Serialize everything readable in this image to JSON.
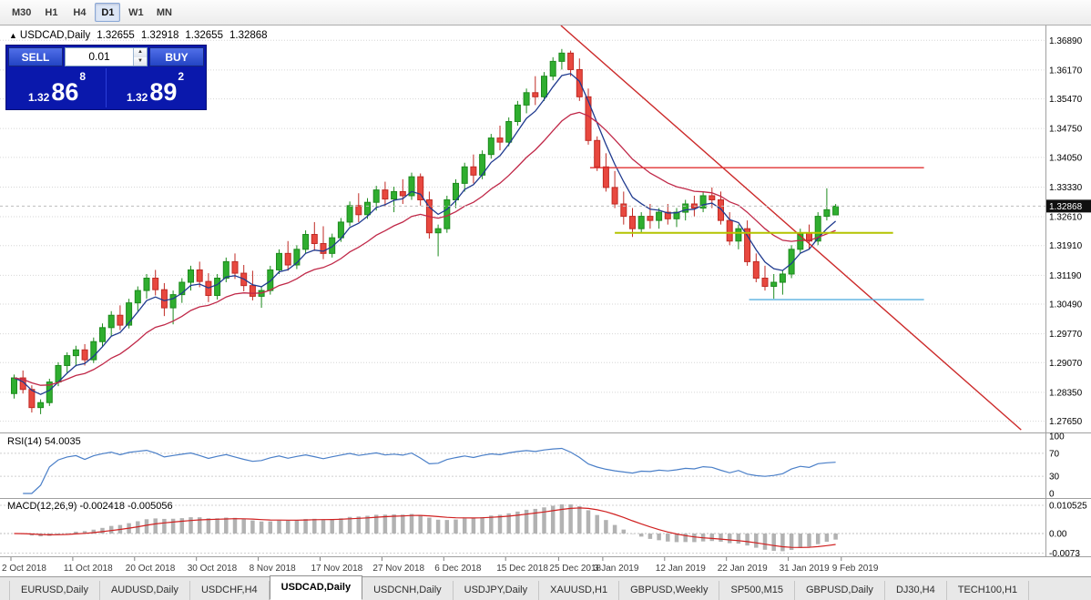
{
  "toolbar": {
    "timeframes": [
      {
        "label": "M30",
        "active": false
      },
      {
        "label": "H1",
        "active": false
      },
      {
        "label": "H4",
        "active": false
      },
      {
        "label": "D1",
        "active": true
      },
      {
        "label": "W1",
        "active": false
      },
      {
        "label": "MN",
        "active": false
      }
    ]
  },
  "trade_panel": {
    "sell_label": "SELL",
    "buy_label": "BUY",
    "lot_value": "0.01",
    "sell_price": {
      "prefix": "1.32",
      "big": "86",
      "sup": "8"
    },
    "buy_price": {
      "prefix": "1.32",
      "big": "89",
      "sup": "2"
    }
  },
  "chart": {
    "info": {
      "direction": "▲",
      "symbol": "USDCAD,Daily",
      "open": "1.32655",
      "high": "1.32918",
      "low": "1.32655",
      "close": "1.32868"
    },
    "price_axis_labels": [
      "1.36890",
      "1.36170",
      "1.35470",
      "1.34750",
      "1.34050",
      "1.33330",
      "1.32610",
      "1.31910",
      "1.31190",
      "1.30490",
      "1.29770",
      "1.29070",
      "1.28350",
      "1.27650"
    ],
    "current_price": "1.32868",
    "scale": {
      "price_top": 1.3725,
      "price_bottom": 1.2742
    },
    "colors": {
      "up": "#2fae2f",
      "up_border": "#1d8a1d",
      "down": "#e8483f",
      "down_border": "#c02a24",
      "ma_fast": "#1f3a8f",
      "ma_slow": "#c02848",
      "trend": "#cc2a2a",
      "hline_red": "#e03232",
      "hline_yellow": "#b4c400",
      "hline_blue": "#58b0e0",
      "rsi": "#4a7fc8",
      "macd_hist": "#b2b2b2",
      "macd_signal": "#d02020"
    },
    "candles": [
      [
        1.2832,
        1.2878,
        1.282,
        1.287
      ],
      [
        1.287,
        1.2888,
        1.2832,
        1.2842
      ],
      [
        1.2842,
        1.2852,
        1.2786,
        1.2798
      ],
      [
        1.2798,
        1.2818,
        1.2782,
        1.281
      ],
      [
        1.281,
        1.2868,
        1.2802,
        1.286
      ],
      [
        1.286,
        1.2908,
        1.285,
        1.29
      ],
      [
        1.29,
        1.2932,
        1.2882,
        1.2924
      ],
      [
        1.2924,
        1.2948,
        1.2898,
        1.2938
      ],
      [
        1.2938,
        1.2952,
        1.29,
        1.2914
      ],
      [
        1.2914,
        1.2968,
        1.2906,
        1.2958
      ],
      [
        1.2958,
        1.3002,
        1.2944,
        1.2992
      ],
      [
        1.2992,
        1.3032,
        1.2972,
        1.3022
      ],
      [
        1.3022,
        1.3046,
        1.2986,
        1.2998
      ],
      [
        1.2998,
        1.3062,
        1.299,
        1.3052
      ],
      [
        1.3052,
        1.3092,
        1.3032,
        1.3082
      ],
      [
        1.3082,
        1.3122,
        1.3062,
        1.3112
      ],
      [
        1.3112,
        1.3132,
        1.307,
        1.3084
      ],
      [
        1.3084,
        1.31,
        1.302,
        1.304
      ],
      [
        1.304,
        1.3082,
        1.3,
        1.3072
      ],
      [
        1.3072,
        1.3112,
        1.3052,
        1.3102
      ],
      [
        1.3102,
        1.3142,
        1.3082,
        1.3132
      ],
      [
        1.3132,
        1.3152,
        1.309,
        1.3104
      ],
      [
        1.3104,
        1.3124,
        1.3054,
        1.307
      ],
      [
        1.307,
        1.3122,
        1.306,
        1.3112
      ],
      [
        1.3112,
        1.3162,
        1.3102,
        1.3152
      ],
      [
        1.3152,
        1.3172,
        1.311,
        1.3124
      ],
      [
        1.3124,
        1.3144,
        1.308,
        1.3094
      ],
      [
        1.3094,
        1.313,
        1.3058,
        1.3068
      ],
      [
        1.3068,
        1.3092,
        1.304,
        1.3082
      ],
      [
        1.3082,
        1.3142,
        1.3072,
        1.3132
      ],
      [
        1.3132,
        1.3182,
        1.3122,
        1.3172
      ],
      [
        1.3172,
        1.3202,
        1.313,
        1.3144
      ],
      [
        1.3144,
        1.3192,
        1.3134,
        1.3182
      ],
      [
        1.3182,
        1.3228,
        1.3172,
        1.3218
      ],
      [
        1.3218,
        1.3248,
        1.3178,
        1.3196
      ],
      [
        1.3196,
        1.3238,
        1.3158,
        1.3172
      ],
      [
        1.3172,
        1.322,
        1.3162,
        1.321
      ],
      [
        1.321,
        1.3258,
        1.32,
        1.3248
      ],
      [
        1.3248,
        1.3298,
        1.3238,
        1.3288
      ],
      [
        1.3288,
        1.3318,
        1.3248,
        1.3266
      ],
      [
        1.3266,
        1.3306,
        1.3256,
        1.3296
      ],
      [
        1.3296,
        1.3336,
        1.3276,
        1.3326
      ],
      [
        1.3326,
        1.3346,
        1.3286,
        1.3304
      ],
      [
        1.3304,
        1.3334,
        1.3272,
        1.3322
      ],
      [
        1.3322,
        1.3352,
        1.3292,
        1.3312
      ],
      [
        1.3312,
        1.3368,
        1.3302,
        1.3358
      ],
      [
        1.3358,
        1.3366,
        1.3288,
        1.3302
      ],
      [
        1.3302,
        1.3322,
        1.3208,
        1.3222
      ],
      [
        1.3222,
        1.3242,
        1.3165,
        1.3232
      ],
      [
        1.3232,
        1.3312,
        1.3222,
        1.3302
      ],
      [
        1.3302,
        1.3352,
        1.3282,
        1.3342
      ],
      [
        1.3342,
        1.3392,
        1.3322,
        1.3382
      ],
      [
        1.3382,
        1.3412,
        1.3342,
        1.3362
      ],
      [
        1.3362,
        1.3422,
        1.3352,
        1.3412
      ],
      [
        1.3412,
        1.3462,
        1.3402,
        1.3452
      ],
      [
        1.3452,
        1.3482,
        1.3422,
        1.3442
      ],
      [
        1.3442,
        1.3502,
        1.3432,
        1.3492
      ],
      [
        1.3492,
        1.3542,
        1.3482,
        1.3532
      ],
      [
        1.3532,
        1.3572,
        1.3512,
        1.3562
      ],
      [
        1.3562,
        1.3602,
        1.3532,
        1.3552
      ],
      [
        1.3552,
        1.3612,
        1.3542,
        1.3602
      ],
      [
        1.3602,
        1.3648,
        1.3592,
        1.3638
      ],
      [
        1.3638,
        1.3668,
        1.3618,
        1.3658
      ],
      [
        1.3658,
        1.3664,
        1.3602,
        1.3618
      ],
      [
        1.3618,
        1.3645,
        1.3542,
        1.3552
      ],
      [
        1.3552,
        1.3572,
        1.3436,
        1.3446
      ],
      [
        1.3446,
        1.3456,
        1.3372,
        1.3382
      ],
      [
        1.3382,
        1.3415,
        1.3322,
        1.3332
      ],
      [
        1.3332,
        1.3372,
        1.3282,
        1.3292
      ],
      [
        1.3292,
        1.3322,
        1.3242,
        1.3262
      ],
      [
        1.3262,
        1.3282,
        1.3212,
        1.3232
      ],
      [
        1.3232,
        1.3272,
        1.3222,
        1.3262
      ],
      [
        1.3262,
        1.3292,
        1.3232,
        1.3252
      ],
      [
        1.3252,
        1.3282,
        1.3232,
        1.3272
      ],
      [
        1.3272,
        1.3292,
        1.3242,
        1.3256
      ],
      [
        1.3256,
        1.3282,
        1.3236,
        1.3272
      ],
      [
        1.3272,
        1.3302,
        1.3252,
        1.3292
      ],
      [
        1.3292,
        1.3312,
        1.3262,
        1.3282
      ],
      [
        1.3282,
        1.3322,
        1.3272,
        1.3312
      ],
      [
        1.3312,
        1.3332,
        1.3282,
        1.3302
      ],
      [
        1.3302,
        1.3322,
        1.3242,
        1.3252
      ],
      [
        1.3252,
        1.3272,
        1.3192,
        1.3202
      ],
      [
        1.3202,
        1.3242,
        1.3182,
        1.3232
      ],
      [
        1.3232,
        1.3252,
        1.3142,
        1.3152
      ],
      [
        1.3152,
        1.3172,
        1.3102,
        1.3112
      ],
      [
        1.3112,
        1.3142,
        1.3082,
        1.3092
      ],
      [
        1.3092,
        1.3122,
        1.3062,
        1.3102
      ],
      [
        1.3102,
        1.3132,
        1.3072,
        1.3122
      ],
      [
        1.3122,
        1.3192,
        1.3112,
        1.3182
      ],
      [
        1.3182,
        1.3232,
        1.3172,
        1.3222
      ],
      [
        1.3222,
        1.3242,
        1.3182,
        1.3202
      ],
      [
        1.3202,
        1.3272,
        1.3192,
        1.3262
      ],
      [
        1.3262,
        1.333,
        1.3252,
        1.3278
      ],
      [
        1.32655,
        1.32918,
        1.32655,
        1.32868
      ]
    ],
    "annotations": {
      "trendline": {
        "bar1": 61.9,
        "price1": 1.3725,
        "bar2": 114.0,
        "price2": 1.2744
      },
      "hlines": [
        {
          "name": "resistance-line-red",
          "price": 1.338,
          "bar1": 65.2,
          "bar2": 103,
          "colorKey": "hline_red"
        },
        {
          "name": "support-line-yellow",
          "price": 1.3222,
          "bar1": 68,
          "bar2": 99.5,
          "colorKey": "hline_yellow"
        },
        {
          "name": "support-line-blue",
          "price": 1.306,
          "bar1": 83.2,
          "bar2": 103,
          "colorKey": "hline_blue"
        }
      ]
    }
  },
  "rsi": {
    "label": "RSI(14) 54.0035",
    "period": 14,
    "levels": [
      {
        "value": 100,
        "label": "100"
      },
      {
        "value": 70,
        "label": "70"
      },
      {
        "value": 30,
        "label": "30"
      },
      {
        "value": 0,
        "label": "0"
      }
    ]
  },
  "macd": {
    "label": "MACD(12,26,9) -0.002418 -0.005056",
    "fast": 12,
    "slow": 26,
    "signal": 9,
    "levels": [
      {
        "value": 0.010525,
        "label": "0.010525"
      },
      {
        "value": 0,
        "label": "0.00"
      },
      {
        "value": -0.0073,
        "label": "-0.0073"
      }
    ]
  },
  "date_axis": [
    {
      "label": "2 Oct 2018",
      "bar": 0
    },
    {
      "label": "11 Oct 2018",
      "bar": 7
    },
    {
      "label": "20 Oct 2018",
      "bar": 14
    },
    {
      "label": "30 Oct 2018",
      "bar": 21
    },
    {
      "label": "8 Nov 2018",
      "bar": 28
    },
    {
      "label": "17 Nov 2018",
      "bar": 35
    },
    {
      "label": "27 Nov 2018",
      "bar": 42
    },
    {
      "label": "6 Dec 2018",
      "bar": 49
    },
    {
      "label": "15 Dec 2018",
      "bar": 56
    },
    {
      "label": "25 Dec 2018",
      "bar": 62
    },
    {
      "label": "3 Jan 2019",
      "bar": 67
    },
    {
      "label": "12 Jan 2019",
      "bar": 74
    },
    {
      "label": "22 Jan 2019",
      "bar": 81
    },
    {
      "label": "31 Jan 2019",
      "bar": 88
    },
    {
      "label": "9 Feb 2019",
      "bar": 94
    }
  ],
  "tabs": [
    {
      "label": "EURUSD,Daily",
      "active": false
    },
    {
      "label": "AUDUSD,Daily",
      "active": false
    },
    {
      "label": "USDCHF,H4",
      "active": false
    },
    {
      "label": "USDCAD,Daily",
      "active": true
    },
    {
      "label": "USDCNH,Daily",
      "active": false
    },
    {
      "label": "USDJPY,Daily",
      "active": false
    },
    {
      "label": "XAUUSD,H1",
      "active": false
    },
    {
      "label": "GBPUSD,Weekly",
      "active": false
    },
    {
      "label": "SP500,M15",
      "active": false
    },
    {
      "label": "GBPUSD,Daily",
      "active": false
    },
    {
      "label": "DJ30,H4",
      "active": false
    },
    {
      "label": "TECH100,H1",
      "active": false
    }
  ]
}
